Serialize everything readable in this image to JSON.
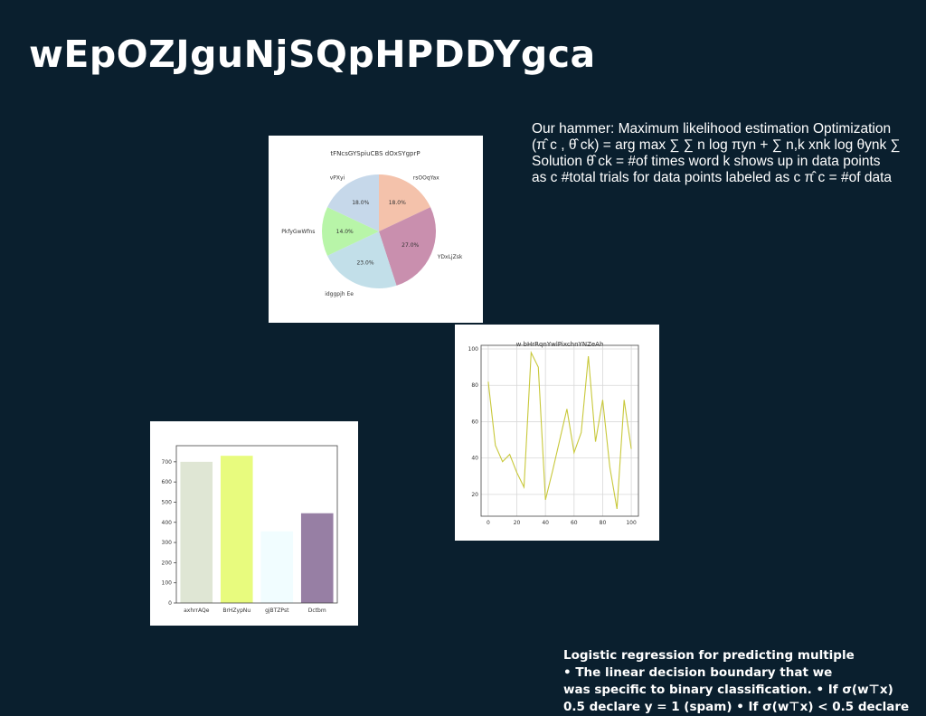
{
  "slide": {
    "title": "wEpOZJguNjSQpHPDDYgca",
    "paragraph": "Our hammer: Maximum likelihood estimation Optimization\n(π̂ c , θ̂ ck) = arg max ∑ ∑ n log πyn + ∑ n,k xnk log θynk ∑\nSolution θ̂ ck = #of times word k shows up in data points\nas c #total trials for data points labeled as c π̂ c = #of data",
    "bottom_text": "Logistic regression for predicting multiple\n• The linear decision boundary that we\nwas specific to binary classification. • If σ(w⊤x)\n0.5 declare y = 1 (spam) • If σ(w⊤x) < 0.5 declare"
  },
  "chart_data": [
    {
      "type": "pie",
      "title": "tFNcsGYSpiuCBS dOxSYgprP",
      "labels": [
        "rsOOqYax",
        "YDxLjZsk",
        "idggpjh Ee",
        "PkfyGwWfns",
        "vPXyi"
      ],
      "values": [
        18.0,
        27.0,
        23.0,
        14.0,
        18.0
      ],
      "value_labels": [
        "18.0%",
        "27.0%",
        "23.0%",
        "14.0%",
        "18.0%"
      ],
      "colors": [
        "#f4c2ab",
        "#c98fae",
        "#c2dfe9",
        "#b8f5a8",
        "#c6d8ea"
      ]
    },
    {
      "type": "line",
      "title": "w bHrRqnYwlPixchnYNZeAh",
      "x": [
        0,
        5,
        10,
        15,
        20,
        25,
        30,
        35,
        40,
        45,
        50,
        55,
        60,
        65,
        70,
        75,
        80,
        85,
        90,
        95,
        100
      ],
      "y": [
        82,
        47,
        38,
        42,
        32,
        24,
        98,
        90,
        17,
        33,
        50,
        67,
        43,
        54,
        96,
        49,
        72,
        35,
        12,
        72,
        45
      ],
      "xticks": [
        0,
        20,
        40,
        60,
        80,
        100
      ],
      "yticks": [
        20,
        40,
        60,
        80,
        100
      ],
      "xlim": [
        -5,
        105
      ],
      "ylim": [
        8,
        102
      ],
      "color": "#c8c83a",
      "grid": true
    },
    {
      "type": "bar",
      "categories": [
        "axhrrAQe",
        "BrHZypNu",
        "gjBTZPst",
        "Dctbm"
      ],
      "values": [
        700,
        730,
        355,
        445
      ],
      "yticks": [
        0,
        100,
        200,
        300,
        400,
        500,
        600,
        700
      ],
      "ylim": [
        0,
        780
      ],
      "colors": [
        "#dfe6d4",
        "#e8fb7e",
        "#f1fdff",
        "#977fa4"
      ]
    }
  ]
}
